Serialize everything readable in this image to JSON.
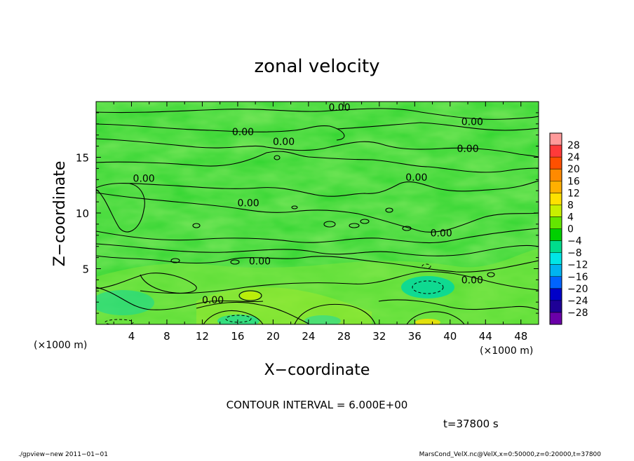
{
  "chart_data": {
    "type": "heatmap",
    "title": "zonal velocity",
    "xlabel": "X−coordinate",
    "ylabel": "Z−coordinate",
    "x_unit": "(×1000 m)",
    "y_unit": "(×1000 m)",
    "xlim": [
      0,
      50
    ],
    "ylim": [
      0,
      20
    ],
    "x_ticks": [
      "4",
      "8",
      "12",
      "16",
      "20",
      "24",
      "28",
      "32",
      "36",
      "40",
      "44",
      "48"
    ],
    "y_ticks": [
      "5",
      "10",
      "15"
    ],
    "colorbar_levels": [
      "28",
      "24",
      "20",
      "16",
      "12",
      "8",
      "4",
      "0",
      "−4",
      "−8",
      "−12",
      "−16",
      "−20",
      "−24",
      "−28"
    ],
    "colorbar_colors": [
      "#ff9a9a",
      "#ff3a3a",
      "#ff5000",
      "#ff8a00",
      "#ffb000",
      "#ffe000",
      "#c8f000",
      "#64e600",
      "#00d000",
      "#00dc8c",
      "#00e6e6",
      "#00b4f0",
      "#0064ff",
      "#0000c8",
      "#1e0096",
      "#6a00a8"
    ],
    "contour_labels": [
      {
        "x": 27.5,
        "z": 19.5,
        "text": "0.00"
      },
      {
        "x": 42.5,
        "z": 18.2,
        "text": "0.00"
      },
      {
        "x": 16.6,
        "z": 17.3,
        "text": "0.00"
      },
      {
        "x": 21.2,
        "z": 16.4,
        "text": "0.00"
      },
      {
        "x": 42.0,
        "z": 15.8,
        "text": "0.00"
      },
      {
        "x": 5.4,
        "z": 13.1,
        "text": "0.00"
      },
      {
        "x": 36.2,
        "z": 13.2,
        "text": "0.00"
      },
      {
        "x": 17.2,
        "z": 10.9,
        "text": "0.00"
      },
      {
        "x": 39.0,
        "z": 8.2,
        "text": "0.00"
      },
      {
        "x": 18.5,
        "z": 5.7,
        "text": "0.00"
      },
      {
        "x": 42.5,
        "z": 4.0,
        "text": "0.00"
      },
      {
        "x": 13.2,
        "z": 2.2,
        "text": "0.00"
      }
    ],
    "contour_interval_text": "CONTOUR INTERVAL = 6.000E+00",
    "time_text": "t=37800 s"
  },
  "footer": {
    "left": "./gpview−new   2011−01−01",
    "right": "MarsCond_VelX.nc@VelX,x=0:50000,z=0:20000,t=37800"
  }
}
